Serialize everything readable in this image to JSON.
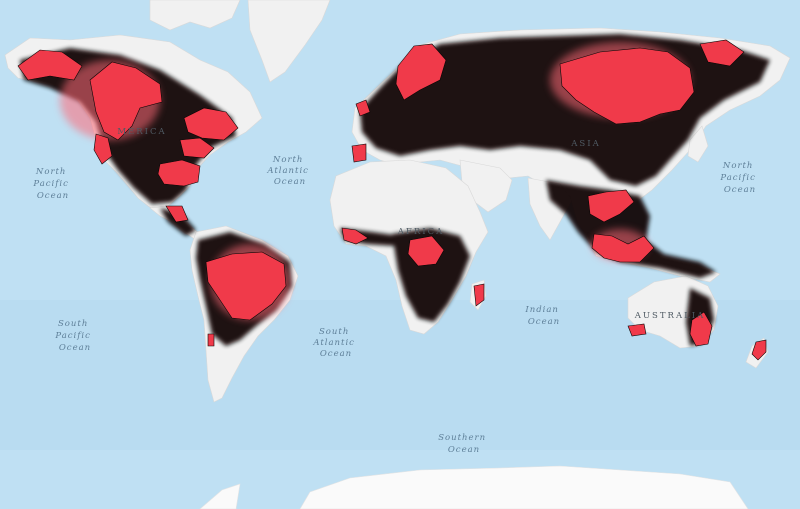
{
  "map": {
    "colors": {
      "ocean": "#bfe0f3",
      "ocean_deep": "#a9d3ee",
      "land": "#f1f1f1",
      "land_border": "#d9d9d9",
      "ice": "#fafafa",
      "cover_dark": "#0a0505",
      "cover_hot": "#f03a4a",
      "cover_glow": "#ff6b78"
    },
    "ocean_labels": [
      {
        "id": "north-pacific-left",
        "lines": [
          "North",
          "Pacific",
          "Ocean"
        ]
      },
      {
        "id": "north-atlantic",
        "lines": [
          "North",
          "Atlantic",
          "Ocean"
        ]
      },
      {
        "id": "north-pacific-right",
        "lines": [
          "North",
          "Pacific",
          "Ocean"
        ]
      },
      {
        "id": "south-pacific",
        "lines": [
          "South",
          "Pacific",
          "Ocean"
        ]
      },
      {
        "id": "south-atlantic",
        "lines": [
          "South",
          "Atlantic",
          "Ocean"
        ]
      },
      {
        "id": "indian",
        "lines": [
          "Indian",
          "Ocean"
        ]
      },
      {
        "id": "southern",
        "lines": [
          "Southern",
          "Ocean"
        ]
      }
    ],
    "continent_labels": [
      {
        "id": "america",
        "text": "MERICA"
      },
      {
        "id": "asia",
        "text": "ASIA"
      },
      {
        "id": "africa",
        "text": "AFRICA"
      },
      {
        "id": "australia",
        "text": "AUSTRALIA"
      }
    ]
  }
}
